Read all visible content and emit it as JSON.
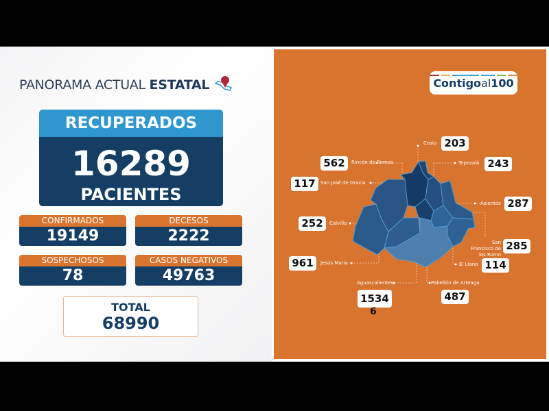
{
  "header": {
    "title_light": "PANORAMA ACTUAL",
    "title_bold": "ESTATAL",
    "icon": "mexico-map-pin-icon"
  },
  "recuperados": {
    "label": "RECUPERADOS",
    "value": "16289",
    "unit": "PACIENTES"
  },
  "stats": [
    {
      "label": "CONFIRMADOS",
      "value": "19149"
    },
    {
      "label": "DECESOS",
      "value": "2222"
    },
    {
      "label": "SOSPECHOSOS",
      "value": "78"
    },
    {
      "label": "CASOS NEGATIVOS",
      "value": "49763"
    }
  ],
  "total": {
    "label": "TOTAL",
    "value": "68990"
  },
  "logo": {
    "text_bold": "Contigo",
    "text_light": "al",
    "text_num": "100"
  },
  "municipios": [
    {
      "name": "Cosío",
      "value": "203"
    },
    {
      "name": "Rincón de Romos",
      "value": "562"
    },
    {
      "name": "Tepezalá",
      "value": "243"
    },
    {
      "name": "San José de Gracia",
      "value": "117"
    },
    {
      "name": "Asientos",
      "value": "287"
    },
    {
      "name": "Calvillo",
      "value": "252"
    },
    {
      "name": "San Francisco de los Romo",
      "value": "285"
    },
    {
      "name": "El Llano",
      "value": "114"
    },
    {
      "name": "Jesús María",
      "value": "961"
    },
    {
      "name": "Aguascalientes",
      "value": "1534",
      "value_overflow": "6"
    },
    {
      "name": "Pabellón de Arteaga",
      "value": "487"
    }
  ],
  "colors": {
    "orange": "#d9742f",
    "navy": "#143e63",
    "blue": "#2f97d0"
  }
}
